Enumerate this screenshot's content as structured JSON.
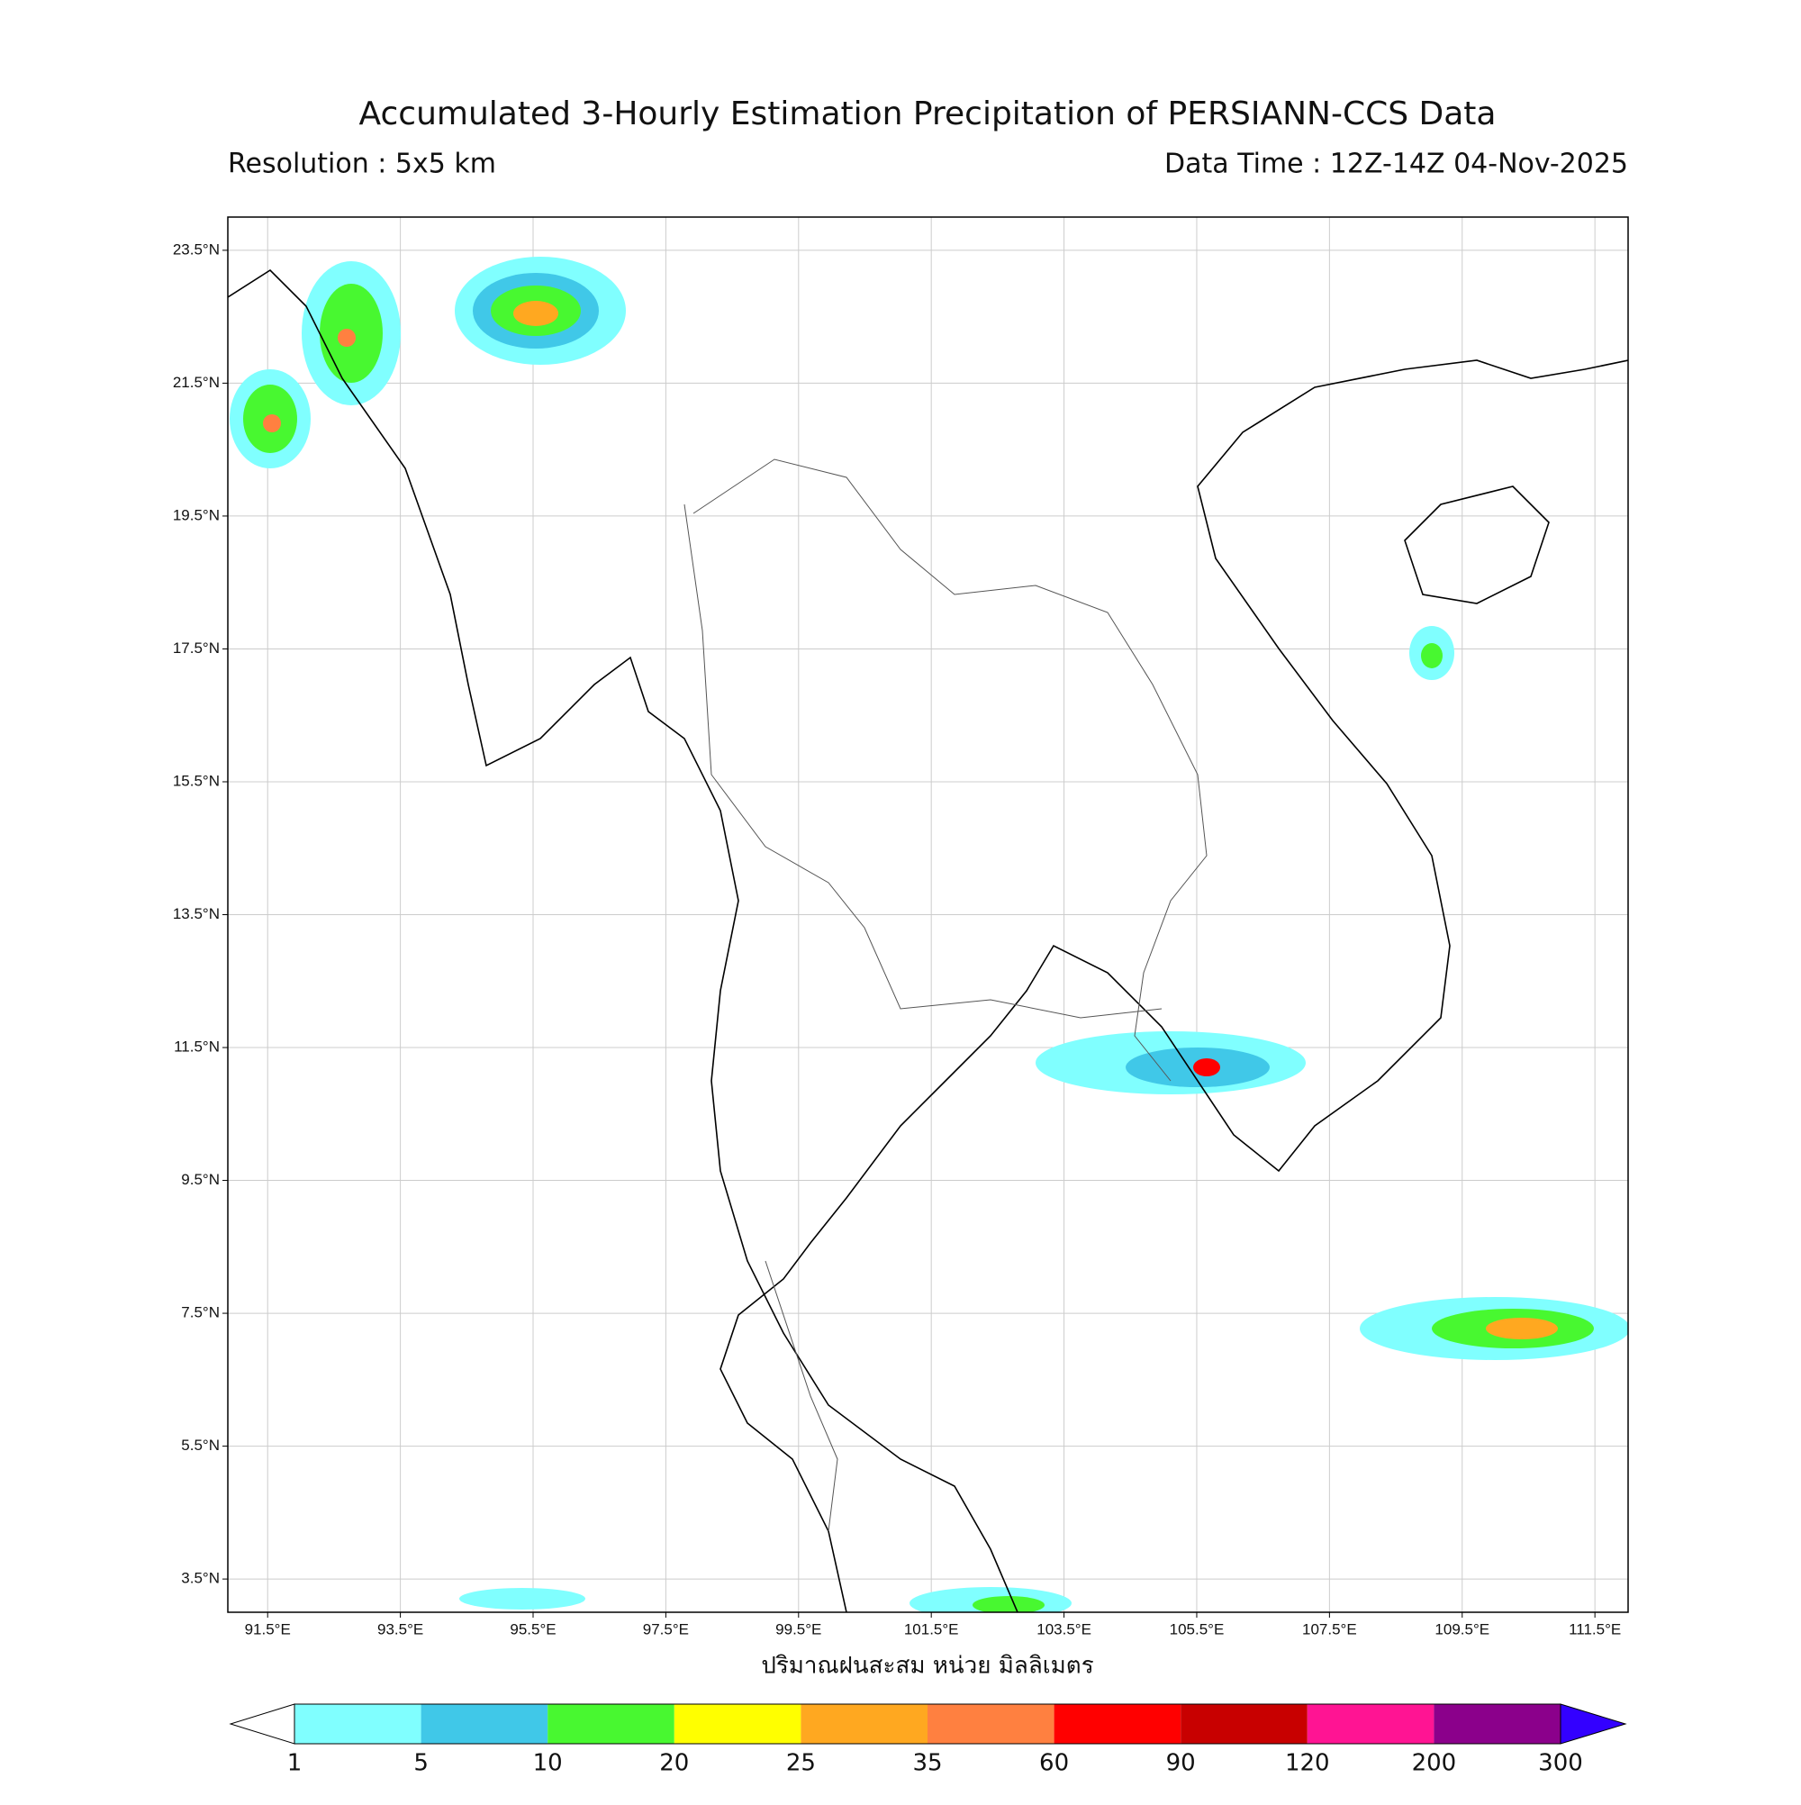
{
  "title": "Accumulated 3-Hourly Estimation Precipitation of PERSIANN-CCS Data",
  "subtitle_left": "Resolution : 5x5 km",
  "subtitle_right": "Data Time : 12Z-14Z 04-Nov-2025",
  "map": {
    "xlim": [
      90.9,
      112.0
    ],
    "ylim": [
      3.0,
      24.0
    ],
    "xticks": [
      {
        "value": 91.5,
        "label": "91.5°E"
      },
      {
        "value": 93.5,
        "label": "93.5°E"
      },
      {
        "value": 95.5,
        "label": "95.5°E"
      },
      {
        "value": 97.5,
        "label": "97.5°E"
      },
      {
        "value": 99.5,
        "label": "99.5°E"
      },
      {
        "value": 101.5,
        "label": "101.5°E"
      },
      {
        "value": 103.5,
        "label": "103.5°E"
      },
      {
        "value": 105.5,
        "label": "105.5°E"
      },
      {
        "value": 107.5,
        "label": "107.5°E"
      },
      {
        "value": 109.5,
        "label": "109.5°E"
      },
      {
        "value": 111.5,
        "label": "111.5°E"
      }
    ],
    "yticks": [
      {
        "value": 23.5,
        "label": "23.5°N"
      },
      {
        "value": 21.5,
        "label": "21.5°N"
      },
      {
        "value": 19.5,
        "label": "19.5°N"
      },
      {
        "value": 17.5,
        "label": "17.5°N"
      },
      {
        "value": 15.5,
        "label": "15.5°N"
      },
      {
        "value": 13.5,
        "label": "13.5°N"
      },
      {
        "value": 11.5,
        "label": "11.5°N"
      },
      {
        "value": 9.5,
        "label": "9.5°N"
      },
      {
        "value": 7.5,
        "label": "7.5°N"
      },
      {
        "value": 5.5,
        "label": "5.5°N"
      },
      {
        "value": 3.5,
        "label": "3.5°N"
      }
    ],
    "grid": true,
    "xlabel": "ปริมาณฝนสะสม หน่วย มิลลิเมตร"
  },
  "colorbar": {
    "bounds": [
      1,
      5,
      10,
      20,
      25,
      35,
      60,
      90,
      120,
      200,
      300
    ],
    "colors": [
      "#80ffff",
      "#40c8e8",
      "#48f830",
      "#ffff00",
      "#ffa820",
      "#ff8040",
      "#ff0000",
      "#c80000",
      "#ff1493",
      "#8b008b"
    ],
    "under_color": "#ffffff",
    "over_color": "#3300ff"
  }
}
